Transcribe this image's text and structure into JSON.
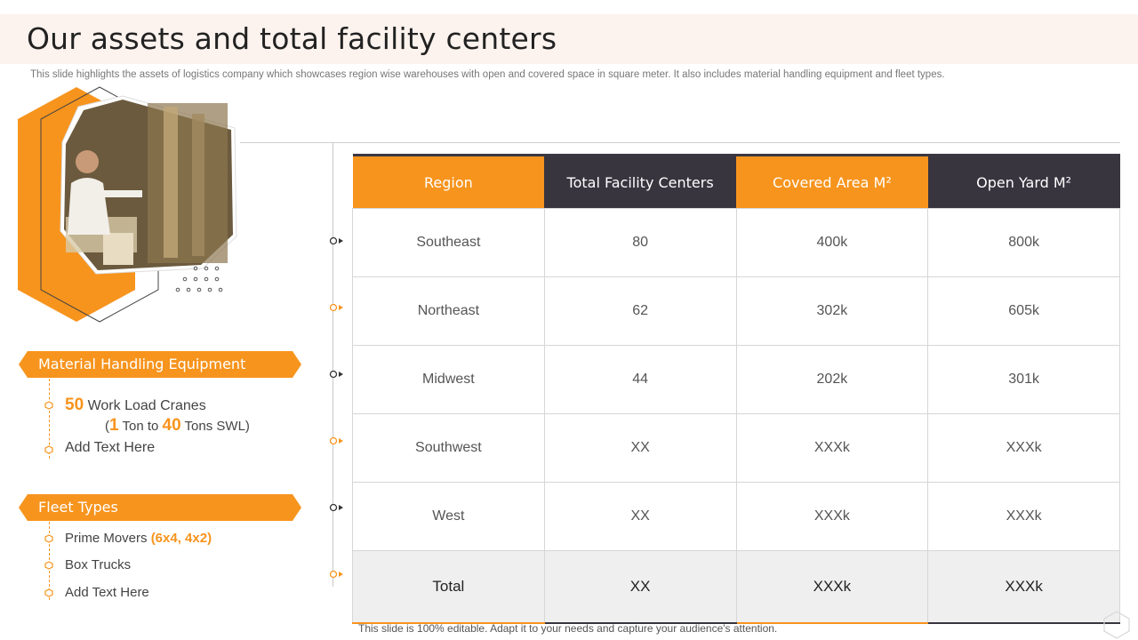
{
  "title": "Our assets and total facility centers",
  "subtitle": "This slide highlights the assets of logistics company which showcases region wise warehouses with open and covered space in square meter. It also includes material handling equipment and fleet types.",
  "colors": {
    "accent": "#f7941d",
    "dark": "#38353f",
    "header_band": "#fdf3ee"
  },
  "photo": {
    "icon": "warehouse-worker-photo"
  },
  "material_handling": {
    "heading": "Material Handling Equipment",
    "items": [
      {
        "count": "50",
        "text": " Work Load Cranes",
        "sub_open": "(",
        "sub_a": "1",
        "sub_mid": " Ton to ",
        "sub_b": "40",
        "sub_end": " Tons SWL)"
      },
      {
        "text": "Add Text Here"
      }
    ]
  },
  "fleet": {
    "heading": "Fleet Types",
    "items": [
      {
        "text": "Prime Movers ",
        "highlight": "(6x4, 4x2)"
      },
      {
        "text": "Box Trucks"
      },
      {
        "text": "Add Text Here"
      }
    ]
  },
  "table": {
    "headers": [
      "Region",
      "Total Facility Centers",
      "Covered Area M²",
      "Open Yard M²"
    ],
    "rows": [
      [
        "Southeast",
        "80",
        "400k",
        "800k"
      ],
      [
        "Northeast",
        "62",
        "302k",
        "605k"
      ],
      [
        "Midwest",
        "44",
        "202k",
        "301k"
      ],
      [
        "Southwest",
        "XX",
        "XXXk",
        "XXXk"
      ],
      [
        "West",
        "XX",
        "XXXk",
        "XXXk"
      ]
    ],
    "total": [
      "Total",
      "XX",
      "XXXk",
      "XXXk"
    ]
  },
  "footer": "This slide is 100% editable. Adapt it to your needs and capture your audience's attention."
}
